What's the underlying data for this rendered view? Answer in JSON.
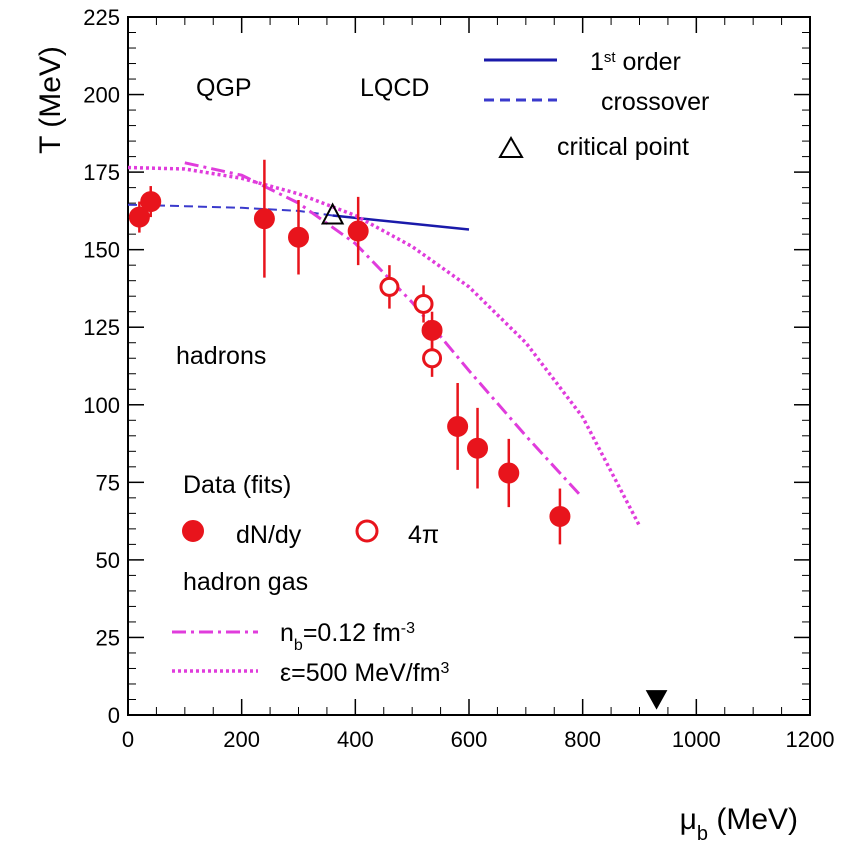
{
  "chart_data": {
    "type": "scatter",
    "title": "",
    "xlabel": "μ_b (MeV)",
    "ylabel": "T (MeV)",
    "xlim": [
      0,
      1200
    ],
    "ylim": [
      0,
      225
    ],
    "grid": false,
    "x_ticks": [
      0,
      200,
      400,
      600,
      800,
      1000,
      1200
    ],
    "y_ticks": [
      0,
      25,
      50,
      75,
      100,
      125,
      150,
      175,
      200,
      225
    ],
    "region_labels": {
      "qgp": "QGP",
      "lqcd": "LQCD",
      "hadrons": "hadrons"
    },
    "legend": {
      "first_order": {
        "main": "1",
        "sup": "st",
        "rest": " order"
      },
      "crossover": "crossover",
      "critical_point": "critical point",
      "data_title": "Data (fits)",
      "dndy": "dN/dy",
      "four_pi": "4π",
      "hadron_gas_title": "hadron gas",
      "nb_line": {
        "n": "n",
        "sub": "b",
        "mid": "=0.12 fm",
        "sup": "-3"
      },
      "eps_line": {
        "main": "ε=500 MeV/fm",
        "sup": "3"
      }
    },
    "series": [
      {
        "name": "1st order",
        "kind": "line",
        "color": "#1a1aaa",
        "points": [
          [
            360,
            161
          ],
          [
            600,
            156.5
          ]
        ]
      },
      {
        "name": "crossover",
        "kind": "line",
        "color": "#3a3acc",
        "points": [
          [
            0,
            164.5
          ],
          [
            100,
            164
          ],
          [
            200,
            163.5
          ],
          [
            300,
            162.5
          ],
          [
            360,
            161
          ]
        ]
      },
      {
        "name": "critical point",
        "kind": "marker",
        "color": "#000000",
        "points": [
          [
            360,
            161
          ]
        ]
      },
      {
        "name": "dN/dy",
        "kind": "points",
        "color": "#e8141c",
        "filled": true,
        "points": [
          {
            "x": 20,
            "y": 160.5,
            "yerr": 5
          },
          {
            "x": 40,
            "y": 165.5,
            "yerr": 5
          },
          {
            "x": 240,
            "y": 160,
            "yerr": 19
          },
          {
            "x": 300,
            "y": 154,
            "yerr": 12
          },
          {
            "x": 405,
            "y": 156,
            "yerr": 11
          },
          {
            "x": 535,
            "y": 124,
            "yerr": 6
          },
          {
            "x": 580,
            "y": 93,
            "yerr": 14
          },
          {
            "x": 615,
            "y": 86,
            "yerr": 13
          },
          {
            "x": 670,
            "y": 78,
            "yerr": 11
          },
          {
            "x": 760,
            "y": 64,
            "yerr": 9
          }
        ]
      },
      {
        "name": "4π",
        "kind": "points",
        "color": "#e8141c",
        "filled": false,
        "points": [
          {
            "x": 460,
            "y": 138,
            "yerr": 7
          },
          {
            "x": 520,
            "y": 132.5,
            "yerr": 6
          },
          {
            "x": 535,
            "y": 115,
            "yerr": 6
          }
        ]
      },
      {
        "name": "n_b=0.12 fm^-3",
        "kind": "line",
        "color": "#e03cdc",
        "points": [
          [
            100,
            178
          ],
          [
            200,
            174
          ],
          [
            300,
            165
          ],
          [
            400,
            152
          ],
          [
            500,
            133
          ],
          [
            600,
            111
          ],
          [
            700,
            90
          ],
          [
            795,
            71
          ]
        ]
      },
      {
        "name": "ε=500 MeV/fm^3",
        "kind": "line",
        "color": "#e03cdc",
        "points": [
          [
            0,
            176.5
          ],
          [
            100,
            176
          ],
          [
            200,
            173
          ],
          [
            300,
            168
          ],
          [
            400,
            161
          ],
          [
            500,
            151
          ],
          [
            600,
            138
          ],
          [
            700,
            120
          ],
          [
            800,
            96
          ],
          [
            900,
            61
          ]
        ]
      },
      {
        "name": "nucleon mass marker",
        "kind": "marker",
        "color": "#000000",
        "points": [
          [
            930,
            4
          ]
        ]
      }
    ]
  }
}
